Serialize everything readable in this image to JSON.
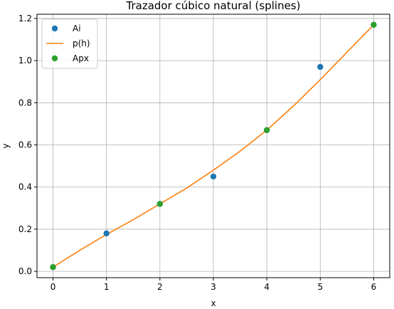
{
  "chart_data": {
    "type": "line",
    "title": "Trazador cúbico natural (splines)",
    "xlabel": "x",
    "ylabel": "y",
    "xlim": [
      -0.3,
      6.3
    ],
    "ylim": [
      -0.03,
      1.22
    ],
    "xticks": [
      0,
      1,
      2,
      3,
      4,
      5,
      6
    ],
    "xtick_labels": [
      "0",
      "1",
      "2",
      "3",
      "4",
      "5",
      "6"
    ],
    "yticks": [
      0.0,
      0.2,
      0.4,
      0.6,
      0.8,
      1.0,
      1.2
    ],
    "ytick_labels": [
      "0.0",
      "0.2",
      "0.4",
      "0.6",
      "0.8",
      "1.0",
      "1.2"
    ],
    "grid": true,
    "legend_position": "top-left",
    "series": [
      {
        "name": "Ai",
        "kind": "scatter",
        "color": "#1f77b4",
        "x": [
          0,
          1,
          2,
          3,
          4,
          5,
          6
        ],
        "y": [
          0.02,
          0.18,
          0.32,
          0.45,
          0.67,
          0.97,
          1.17
        ]
      },
      {
        "name": "p(h)",
        "kind": "line",
        "color": "#ff7f0e",
        "x": [
          0,
          0.5,
          1,
          1.5,
          2,
          2.5,
          3,
          3.5,
          4,
          4.5,
          5,
          5.5,
          6
        ],
        "y": [
          0.02,
          0.1,
          0.175,
          0.245,
          0.32,
          0.395,
          0.48,
          0.57,
          0.67,
          0.785,
          0.91,
          1.04,
          1.17
        ]
      },
      {
        "name": "Apx",
        "kind": "scatter",
        "color": "#2ca02c",
        "x": [
          0,
          2,
          4,
          6
        ],
        "y": [
          0.02,
          0.32,
          0.67,
          1.17
        ]
      }
    ]
  }
}
